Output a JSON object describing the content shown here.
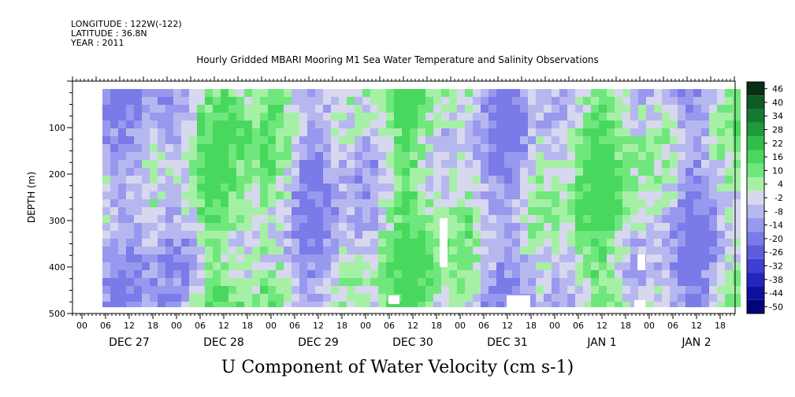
{
  "header": {
    "longitude": "LONGITUDE : 122W(-122)",
    "latitude": "LATITUDE : 36.8N",
    "year": "YEAR : 2011"
  },
  "chart_data": {
    "type": "heatmap",
    "title": "Hourly Gridded MBARI Mooring M1 Sea Water Temperature and Salinity Observations",
    "xlabel": "U Component of Water Velocity (cm s-1)",
    "ylabel": "DEPTH (m)",
    "yticks": [
      100,
      200,
      300,
      400,
      500
    ],
    "ylim": [
      500,
      0
    ],
    "xticks_hours": [
      "00",
      "06",
      "12",
      "18",
      "00",
      "06",
      "12",
      "18",
      "00",
      "06",
      "12",
      "18",
      "00",
      "06",
      "12",
      "18",
      "00",
      "06",
      "12",
      "18",
      "00",
      "06",
      "12",
      "18",
      "00",
      "06",
      "12",
      "18"
    ],
    "x_days": [
      "DEC 27",
      "DEC 28",
      "DEC 29",
      "DEC 30",
      "DEC 31",
      "JAN  1",
      "JAN  2"
    ],
    "colorbar_levels": [
      "46",
      "40",
      "34",
      "28",
      "22",
      "16",
      "10",
      "4",
      "-2",
      "-8",
      "-14",
      "-20",
      "-26",
      "-32",
      "-38",
      "-44",
      "-50"
    ],
    "colorbar_colors": [
      "#0a2e12",
      "#0f5a22",
      "#157a2f",
      "#1f9a3b",
      "#2fbf4a",
      "#49d85e",
      "#6fe77c",
      "#a6f0a6",
      "#d7d7ee",
      "#b7b7f0",
      "#9898ee",
      "#7a7ae8",
      "#5c5cde",
      "#3f3fd2",
      "#2424c0",
      "#1010a0",
      "#04047a"
    ]
  }
}
